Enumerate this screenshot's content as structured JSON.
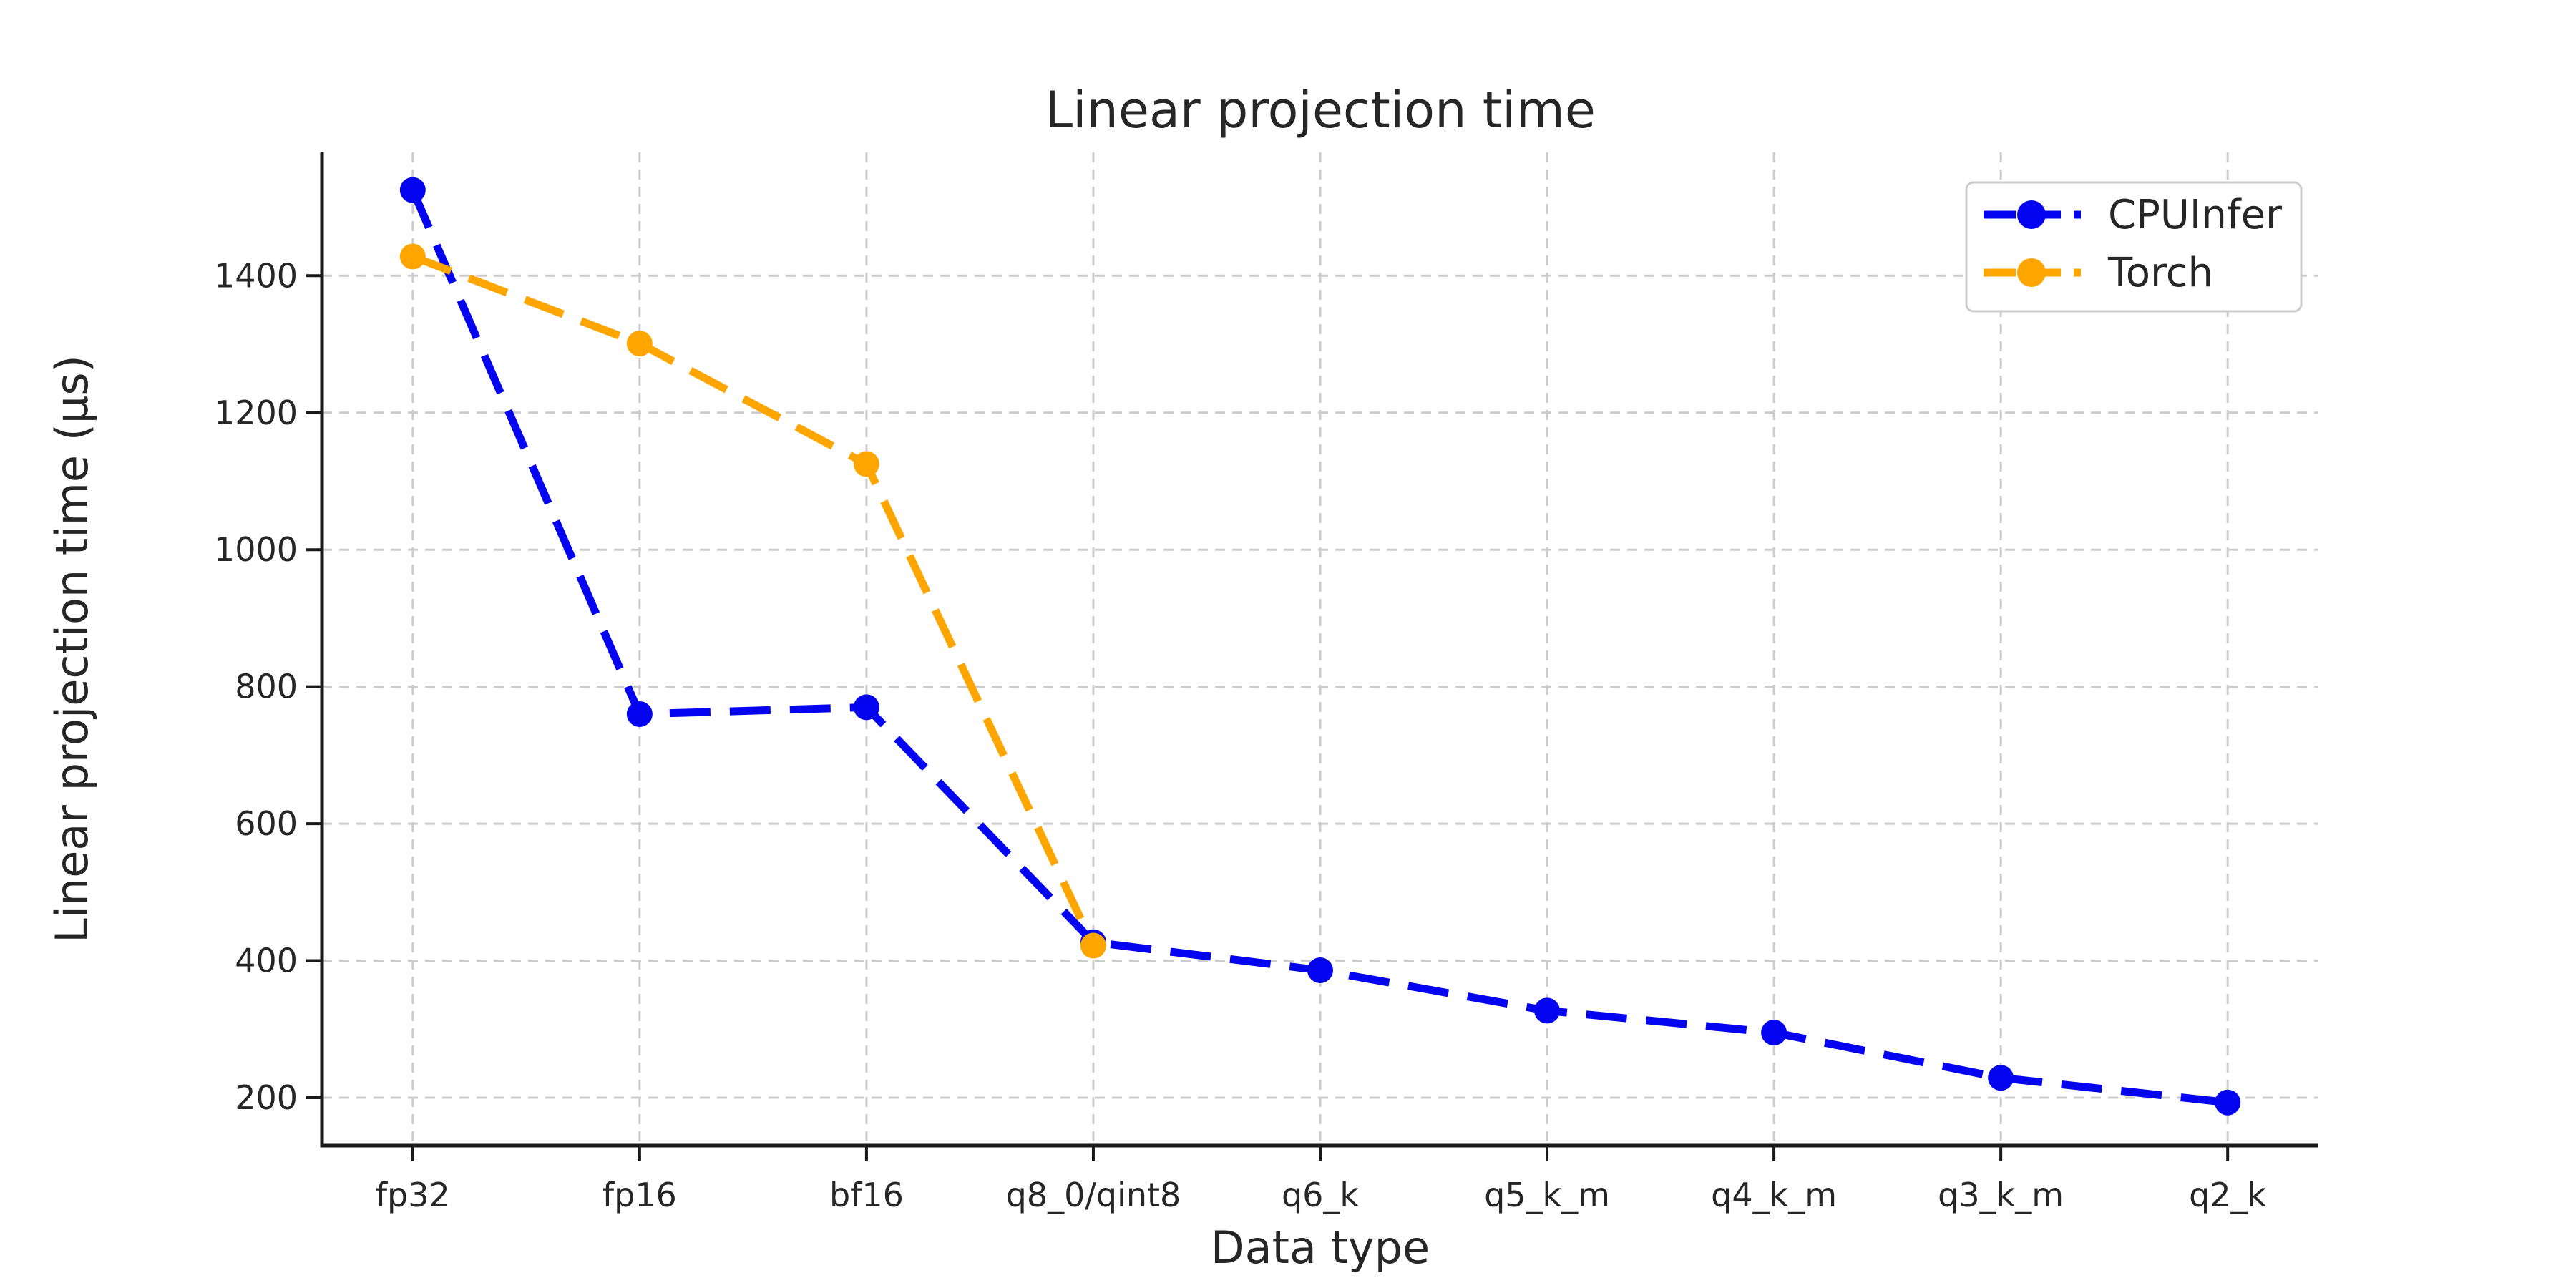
{
  "chart_data": {
    "type": "line",
    "title": "Linear projection time",
    "xlabel": "Data type",
    "ylabel": "Linear projection time (µs)",
    "categories": [
      "fp32",
      "fp16",
      "bf16",
      "q8_0/qint8",
      "q6_k",
      "q5_k_m",
      "q4_k_m",
      "q3_k_m",
      "q2_k"
    ],
    "series": [
      {
        "name": "CPUInfer",
        "color": "#0404f0",
        "values": [
          1525,
          760,
          770,
          427,
          386,
          327,
          295,
          229,
          193
        ]
      },
      {
        "name": "Torch",
        "color": "#ffa500",
        "values": [
          1428,
          1301,
          1125,
          422,
          null,
          null,
          null,
          null,
          null
        ]
      }
    ],
    "yticks": [
      200,
      400,
      600,
      800,
      1000,
      1200,
      1400
    ],
    "ylim": [
      130,
      1580
    ],
    "grid": true,
    "grid_color": "#cccccc",
    "spine_color": "#1a1a1a",
    "text_color": "#262626",
    "line_style": "dashed",
    "marker": "circle",
    "legend_position": "upper right",
    "legend_border_color": "#cccccc"
  }
}
